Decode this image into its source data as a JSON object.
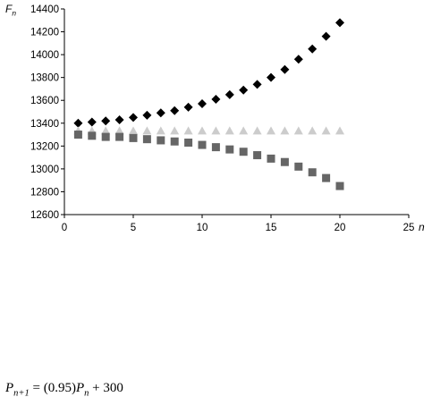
{
  "chart_data": {
    "type": "scatter",
    "y_label": [
      {
        "text": "F",
        "italic": true
      },
      {
        "text": "n",
        "italic": true,
        "sub": true
      }
    ],
    "x_label": [
      {
        "text": "n",
        "italic": true
      }
    ],
    "x": [
      1,
      2,
      3,
      4,
      5,
      6,
      7,
      8,
      9,
      10,
      11,
      12,
      13,
      14,
      15,
      16,
      17,
      18,
      19,
      20
    ],
    "series": [
      {
        "marker": "diamond",
        "color": "#000000",
        "values": [
          13400,
          13410,
          13420,
          13430,
          13450,
          13470,
          13490,
          13510,
          13540,
          13570,
          13610,
          13650,
          13690,
          13740,
          13800,
          13870,
          13960,
          14050,
          14160,
          14280
        ]
      },
      {
        "marker": "triangle",
        "color": "#cccccc",
        "values": [
          13333,
          13333,
          13333,
          13333,
          13333,
          13333,
          13333,
          13333,
          13333,
          13333,
          13333,
          13333,
          13333,
          13333,
          13333,
          13333,
          13333,
          13333,
          13333,
          13333
        ]
      },
      {
        "marker": "square",
        "color": "#666666",
        "values": [
          13300,
          13290,
          13280,
          13280,
          13270,
          13260,
          13250,
          13240,
          13230,
          13210,
          13190,
          13170,
          13150,
          13120,
          13090,
          13060,
          13020,
          12970,
          12920,
          12850
        ]
      }
    ],
    "xlim": [
      0,
      25
    ],
    "xticks": [
      0,
      5,
      10,
      15,
      20,
      25
    ],
    "ylim": [
      12600,
      14400
    ],
    "yticks": [
      12600,
      12800,
      13000,
      13200,
      13400,
      13600,
      13800,
      14000,
      14200,
      14400
    ],
    "grid": false,
    "annotation": [
      {
        "text": "P",
        "italic": true
      },
      {
        "text": "n+1",
        "italic": true,
        "sub": true
      },
      {
        "text": " = (0.95)"
      },
      {
        "text": "P",
        "italic": true
      },
      {
        "text": "n",
        "italic": true,
        "sub": true
      },
      {
        "text": " + 300"
      }
    ]
  }
}
